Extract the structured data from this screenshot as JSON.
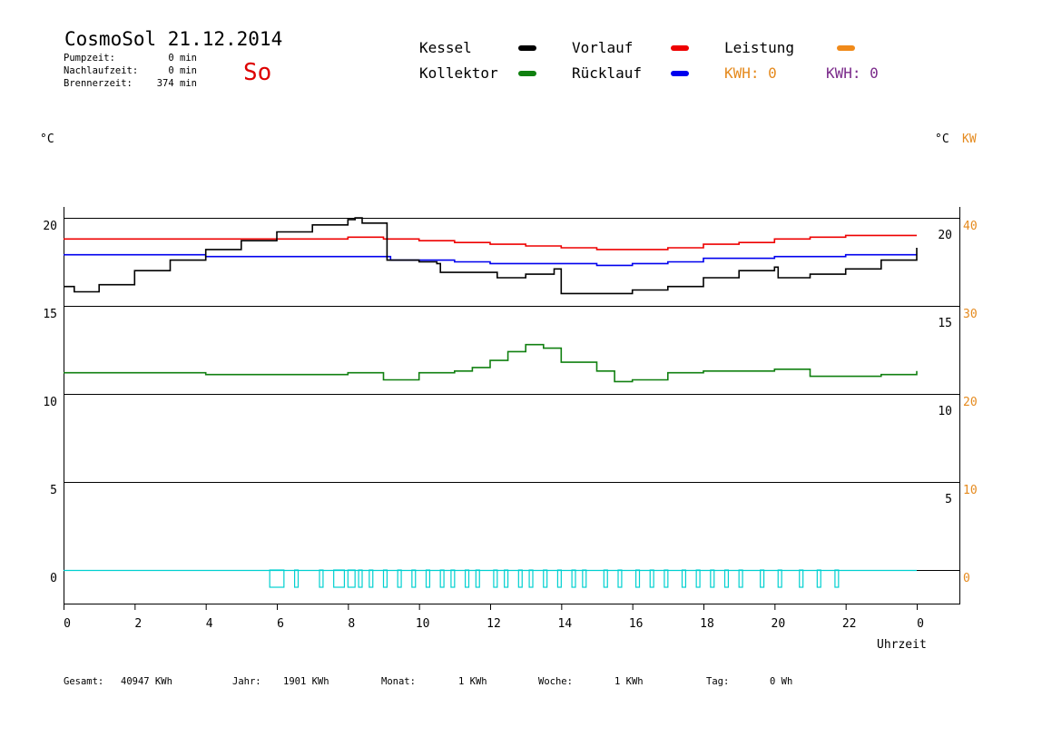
{
  "header": {
    "title": "CosmoSol 21.12.2014",
    "day": "So",
    "stats": [
      {
        "label": "Pumpzeit:",
        "value": "0 min"
      },
      {
        "label": "Nachlaufzeit:",
        "value": "0 min"
      },
      {
        "label": "Brennerzeit:",
        "value": "374 min"
      }
    ]
  },
  "legend": {
    "items": [
      {
        "label": "Kessel",
        "color": "#000000"
      },
      {
        "label": "Vorlauf",
        "color": "#ee0000"
      },
      {
        "label": "Leistung",
        "color": "#f08a1a"
      },
      {
        "label": "Kollektor",
        "color": "#108010"
      },
      {
        "label": "Rücklauf",
        "color": "#0000ee"
      }
    ],
    "kwh_orange": "KWH: 0",
    "kwh_purple": "KWH: 0",
    "kwh_orange_color": "#e58a1e",
    "kwh_purple_color": "#7a2a8a"
  },
  "axes": {
    "left_unit": "°C",
    "right_unit": "°C",
    "right_unit_kw": "KW",
    "x_label": "Uhrzeit"
  },
  "footer": {
    "items": [
      {
        "label": "Gesamt:",
        "value": "40947 KWh"
      },
      {
        "label": "Jahr:",
        "value": "1901 KWh"
      },
      {
        "label": "Monat:",
        "value": "1 KWh"
      },
      {
        "label": "Woche:",
        "value": "1 KWh"
      },
      {
        "label": "Tag:",
        "value": "0 Wh"
      }
    ]
  },
  "chart_data": {
    "type": "line",
    "x_ticks": [
      "0",
      "2",
      "4",
      "6",
      "8",
      "10",
      "12",
      "14",
      "16",
      "18",
      "20",
      "22",
      "0"
    ],
    "x_range": [
      0,
      24
    ],
    "y_left": {
      "ticks": [
        "20",
        "15",
        "10",
        "5",
        "0"
      ],
      "range": [
        -2,
        20
      ]
    },
    "y_right_celsius": {
      "ticks": [
        "20",
        "15",
        "10",
        "5"
      ]
    },
    "y_right_kw": {
      "ticks": [
        "40",
        "30",
        "20",
        "10",
        "0"
      ],
      "color": "#e58a1e"
    },
    "grid": "horizontal",
    "series": [
      {
        "name": "Vorlauf",
        "color": "#ee0000",
        "points": [
          [
            0,
            18.8
          ],
          [
            2,
            18.8
          ],
          [
            4,
            18.8
          ],
          [
            6,
            18.8
          ],
          [
            8,
            18.9
          ],
          [
            9,
            18.8
          ],
          [
            10,
            18.7
          ],
          [
            11,
            18.6
          ],
          [
            12,
            18.5
          ],
          [
            13,
            18.4
          ],
          [
            14,
            18.3
          ],
          [
            15,
            18.2
          ],
          [
            16,
            18.2
          ],
          [
            17,
            18.3
          ],
          [
            18,
            18.5
          ],
          [
            19,
            18.6
          ],
          [
            20,
            18.8
          ],
          [
            21,
            18.9
          ],
          [
            22,
            19.0
          ],
          [
            24,
            19.0
          ]
        ]
      },
      {
        "name": "Rücklauf",
        "color": "#0000ee",
        "points": [
          [
            0,
            17.9
          ],
          [
            2,
            17.9
          ],
          [
            4,
            17.8
          ],
          [
            6,
            17.8
          ],
          [
            8,
            17.8
          ],
          [
            9,
            17.8
          ],
          [
            9.2,
            17.6
          ],
          [
            10,
            17.6
          ],
          [
            11,
            17.5
          ],
          [
            12,
            17.4
          ],
          [
            14,
            17.4
          ],
          [
            15,
            17.3
          ],
          [
            16,
            17.4
          ],
          [
            17,
            17.5
          ],
          [
            18,
            17.7
          ],
          [
            20,
            17.8
          ],
          [
            22,
            17.9
          ],
          [
            24,
            17.9
          ]
        ]
      },
      {
        "name": "Kessel",
        "color": "#000000",
        "points": [
          [
            0,
            16.1
          ],
          [
            0.2,
            16.1
          ],
          [
            0.3,
            15.8
          ],
          [
            1,
            16.2
          ],
          [
            2,
            17.0
          ],
          [
            3,
            17.6
          ],
          [
            4,
            18.2
          ],
          [
            5,
            18.7
          ],
          [
            6,
            19.2
          ],
          [
            7,
            19.6
          ],
          [
            8,
            19.9
          ],
          [
            8.2,
            20.0
          ],
          [
            8.4,
            19.7
          ],
          [
            9,
            19.7
          ],
          [
            9.1,
            17.6
          ],
          [
            10,
            17.5
          ],
          [
            10.5,
            17.4
          ],
          [
            10.6,
            16.9
          ],
          [
            12,
            16.9
          ],
          [
            12.2,
            16.6
          ],
          [
            13,
            16.8
          ],
          [
            13.8,
            17.1
          ],
          [
            14,
            15.7
          ],
          [
            15,
            15.7
          ],
          [
            16,
            15.9
          ],
          [
            17,
            16.1
          ],
          [
            18,
            16.6
          ],
          [
            19,
            17.0
          ],
          [
            20,
            17.2
          ],
          [
            20.1,
            16.6
          ],
          [
            21,
            16.8
          ],
          [
            22,
            17.1
          ],
          [
            23,
            17.6
          ],
          [
            24,
            18.3
          ]
        ]
      },
      {
        "name": "Kollektor",
        "color": "#108010",
        "points": [
          [
            0,
            11.2
          ],
          [
            2,
            11.2
          ],
          [
            4,
            11.1
          ],
          [
            6,
            11.1
          ],
          [
            8,
            11.2
          ],
          [
            9,
            10.8
          ],
          [
            10,
            11.2
          ],
          [
            11,
            11.3
          ],
          [
            11.5,
            11.5
          ],
          [
            12,
            11.9
          ],
          [
            12.5,
            12.4
          ],
          [
            13,
            12.8
          ],
          [
            13.5,
            12.6
          ],
          [
            14,
            11.8
          ],
          [
            15,
            11.3
          ],
          [
            15.5,
            10.7
          ],
          [
            16,
            10.8
          ],
          [
            17,
            11.2
          ],
          [
            18,
            11.3
          ],
          [
            20,
            11.4
          ],
          [
            21,
            11.0
          ],
          [
            22,
            11.0
          ],
          [
            23,
            11.1
          ],
          [
            24,
            11.3
          ]
        ]
      },
      {
        "name": "Leistung",
        "color": "#00d0d0",
        "baseline": 0,
        "pulses": [
          [
            5.8,
            6.2
          ],
          [
            6.5,
            6.6
          ],
          [
            7.2,
            7.3
          ],
          [
            7.6,
            7.9
          ],
          [
            8.0,
            8.2
          ],
          [
            8.3,
            8.4
          ],
          [
            8.6,
            8.7
          ],
          [
            9.0,
            9.1
          ],
          [
            9.4,
            9.5
          ],
          [
            9.8,
            9.9
          ],
          [
            10.2,
            10.3
          ],
          [
            10.6,
            10.7
          ],
          [
            10.9,
            11.0
          ],
          [
            11.3,
            11.4
          ],
          [
            11.6,
            11.7
          ],
          [
            12.1,
            12.2
          ],
          [
            12.4,
            12.5
          ],
          [
            12.8,
            12.9
          ],
          [
            13.1,
            13.2
          ],
          [
            13.5,
            13.6
          ],
          [
            13.9,
            14.0
          ],
          [
            14.3,
            14.4
          ],
          [
            14.6,
            14.7
          ],
          [
            15.2,
            15.3
          ],
          [
            15.6,
            15.7
          ],
          [
            16.1,
            16.2
          ],
          [
            16.5,
            16.6
          ],
          [
            16.9,
            17.0
          ],
          [
            17.4,
            17.5
          ],
          [
            17.8,
            17.9
          ],
          [
            18.2,
            18.3
          ],
          [
            18.6,
            18.7
          ],
          [
            19.0,
            19.1
          ],
          [
            19.6,
            19.7
          ],
          [
            20.1,
            20.2
          ],
          [
            20.7,
            20.8
          ],
          [
            21.2,
            21.3
          ],
          [
            21.7,
            21.8
          ]
        ]
      }
    ]
  }
}
